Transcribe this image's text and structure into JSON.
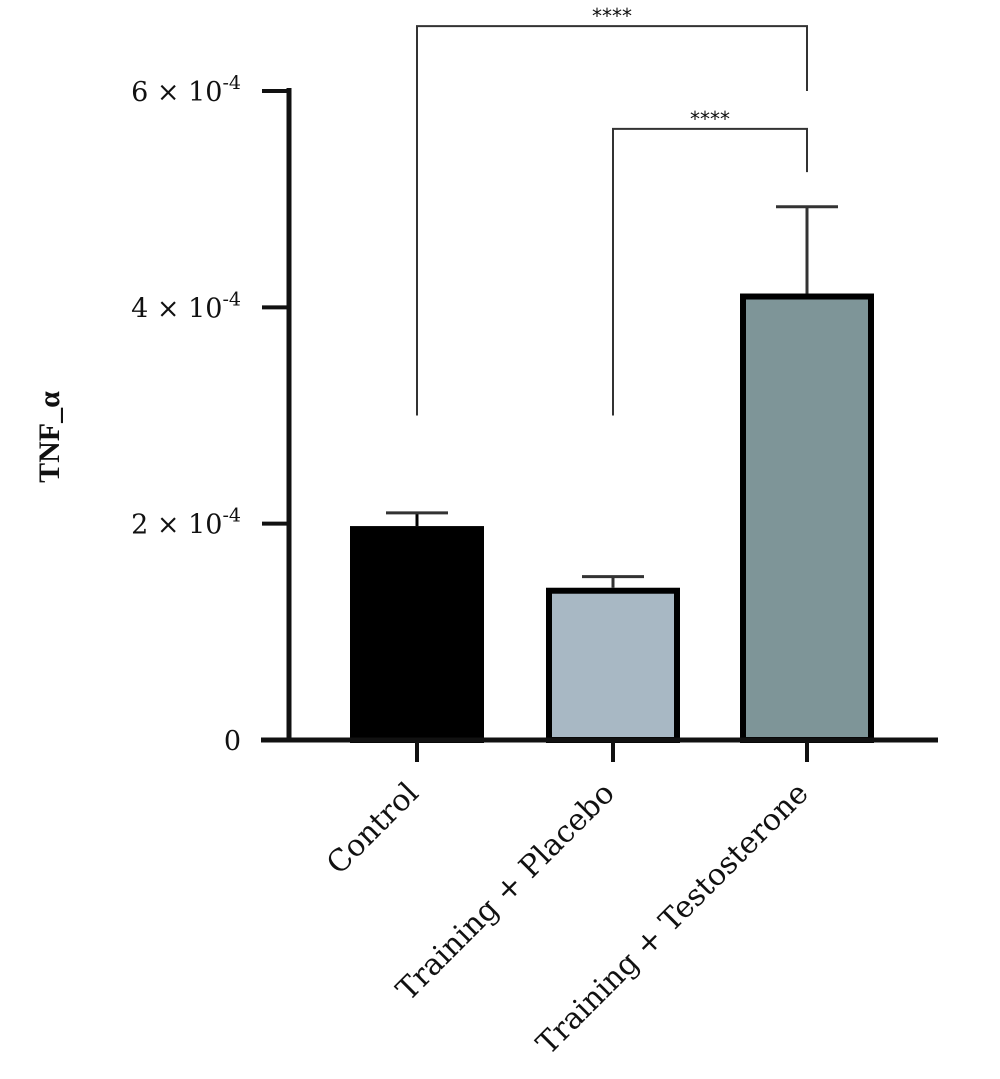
{
  "chart_data": {
    "type": "bar",
    "ylabel": "TNF_α",
    "xlabel": "",
    "categories": [
      "Control",
      "Training + Placebo",
      "Training + Testosterone"
    ],
    "values": [
      0.000195,
      0.000138,
      0.00041
    ],
    "errors": [
      1.5e-05,
      1.3e-05,
      8.3e-05
    ],
    "bar_colors": [
      "#000000",
      "#a8b8c4",
      "#7e9598"
    ],
    "ylim": [
      0,
      0.0006
    ],
    "yticks": [
      {
        "value": 0,
        "mant": "0",
        "exp": ""
      },
      {
        "value": 0.0002,
        "mant": "2 × 10",
        "exp": "-4"
      },
      {
        "value": 0.0004,
        "mant": "4 × 10",
        "exp": "-4"
      },
      {
        "value": 0.0006,
        "mant": "6 × 10",
        "exp": "-4"
      }
    ],
    "significance": [
      {
        "from": 0,
        "to": 2,
        "label": "****",
        "y_left": 0.0003,
        "y_right": 0.0006,
        "y_top": 0.00066
      },
      {
        "from": 1,
        "to": 2,
        "label": "****",
        "y_left": 0.0003,
        "y_right": 0.000525,
        "y_top": 0.000565
      }
    ],
    "grid": false
  }
}
